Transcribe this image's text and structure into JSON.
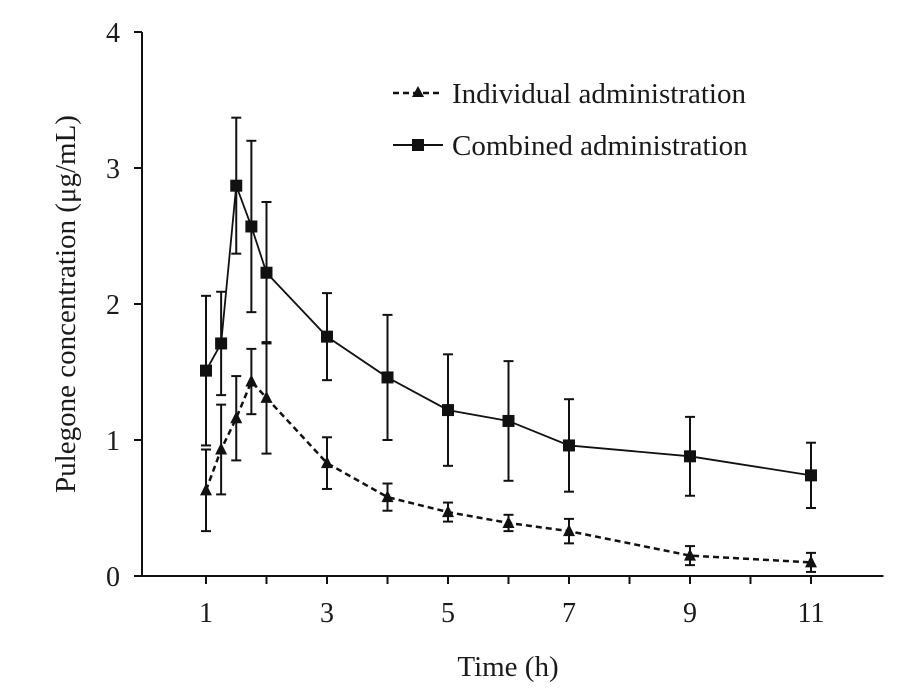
{
  "chart_data": {
    "type": "line",
    "title": "",
    "xlabel": "Time (h)",
    "ylabel": "Pulegone concentration (μg/mL)",
    "xlim": [
      0,
      12
    ],
    "ylim": [
      0,
      4
    ],
    "xticks": [
      1,
      3,
      5,
      7,
      9,
      11
    ],
    "yticks": [
      0,
      1,
      2,
      3,
      4
    ],
    "grid": false,
    "legend_position": "top-right",
    "x": [
      1,
      1.25,
      1.5,
      1.75,
      2,
      3,
      4,
      5,
      6,
      7,
      9,
      11
    ],
    "series": [
      {
        "name": "Individual administration",
        "marker": "triangle",
        "line": "dashed",
        "values": [
          0.63,
          0.93,
          1.16,
          1.43,
          1.31,
          0.83,
          0.58,
          0.47,
          0.39,
          0.33,
          0.15,
          0.1
        ],
        "error": [
          0.3,
          0.33,
          0.31,
          0.24,
          0.41,
          0.19,
          0.1,
          0.07,
          0.06,
          0.09,
          0.07,
          0.07
        ]
      },
      {
        "name": "Combined administration",
        "marker": "square",
        "line": "solid",
        "values": [
          1.51,
          1.71,
          2.87,
          2.57,
          2.23,
          1.76,
          1.46,
          1.22,
          1.14,
          0.96,
          0.88,
          0.74
        ],
        "error": [
          0.55,
          0.38,
          0.5,
          0.63,
          0.52,
          0.32,
          0.46,
          0.41,
          0.44,
          0.34,
          0.29,
          0.24
        ]
      }
    ]
  }
}
